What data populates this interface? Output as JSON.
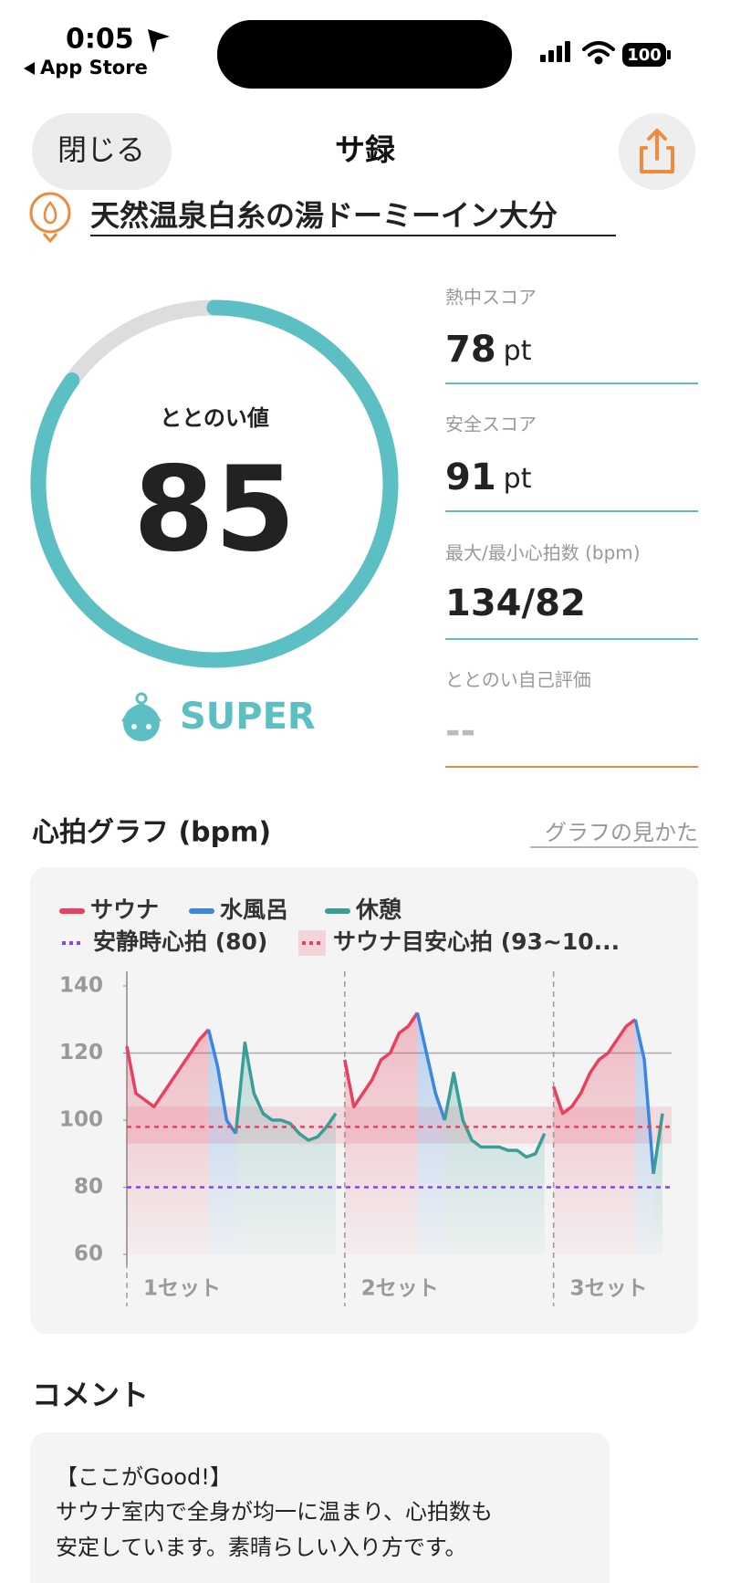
{
  "status_bar": {
    "time": "0:05",
    "back_label": "App Store",
    "battery": "100"
  },
  "nav": {
    "close": "閉じる",
    "title": "サ録"
  },
  "facility": {
    "name": "天然温泉白糸の湯ドーミーイン大分"
  },
  "score": {
    "label": "ととのい値",
    "value": 85,
    "rating": "SUPER"
  },
  "stats": [
    {
      "label": "熱中スコア",
      "value": 78,
      "unit": "pt"
    },
    {
      "label": "安全スコア",
      "value": 91,
      "unit": "pt"
    },
    {
      "label": "最大/最小心拍数 (bpm)",
      "value": "134/82"
    },
    {
      "label": "ととのい自己評価",
      "value": "--"
    }
  ],
  "graph_section": {
    "title": "心拍グラフ (bpm)",
    "help_link": "グラフの見かた"
  },
  "chart_data": {
    "type": "line",
    "x": [
      0,
      1,
      2,
      3,
      4,
      5,
      6,
      7,
      8,
      9,
      10,
      11,
      12,
      13,
      14,
      15,
      16,
      17,
      18,
      19,
      20,
      21,
      22,
      23,
      24,
      25,
      26,
      27,
      28,
      29,
      30,
      31,
      32,
      33,
      34,
      35,
      36,
      37,
      38,
      39,
      40,
      41,
      42,
      43,
      44,
      45,
      46,
      47,
      48,
      49,
      50,
      51,
      52,
      53,
      54,
      55,
      56,
      57,
      58,
      59
    ],
    "xlim": [
      0,
      60
    ],
    "ylim": [
      60,
      140
    ],
    "yticks": [
      60,
      80,
      100,
      120,
      140
    ],
    "series": [
      {
        "name": "サウナ",
        "color": "#e8405e",
        "values": [
          122,
          108,
          106,
          104,
          108,
          112,
          116,
          120,
          124,
          127,
          null,
          null,
          null,
          null,
          null,
          null,
          null,
          null,
          null,
          null,
          null,
          null,
          null,
          null,
          118,
          104,
          108,
          112,
          118,
          120,
          126,
          128,
          132,
          null,
          null,
          null,
          null,
          null,
          null,
          null,
          null,
          null,
          null,
          null,
          null,
          null,
          null,
          110,
          102,
          104,
          108,
          114,
          118,
          120,
          124,
          128,
          130,
          null,
          null,
          null
        ]
      },
      {
        "name": "水風呂",
        "color": "#3a86e0",
        "values": [
          null,
          null,
          null,
          null,
          null,
          null,
          null,
          null,
          null,
          127,
          116,
          100,
          96,
          null,
          null,
          null,
          null,
          null,
          null,
          null,
          null,
          null,
          null,
          null,
          null,
          null,
          null,
          null,
          null,
          null,
          null,
          null,
          132,
          120,
          108,
          100,
          null,
          null,
          null,
          null,
          null,
          null,
          null,
          null,
          null,
          null,
          null,
          null,
          null,
          null,
          null,
          null,
          null,
          null,
          null,
          null,
          130,
          118,
          84,
          null
        ]
      },
      {
        "name": "休憩",
        "color": "#3a9e98",
        "values": [
          null,
          null,
          null,
          null,
          null,
          null,
          null,
          null,
          null,
          null,
          null,
          null,
          96,
          123,
          108,
          102,
          100,
          100,
          99,
          96,
          94,
          95,
          98,
          102,
          null,
          null,
          null,
          null,
          null,
          null,
          null,
          null,
          null,
          null,
          null,
          100,
          114,
          100,
          94,
          92,
          92,
          92,
          91,
          91,
          89,
          90,
          96,
          null,
          null,
          null,
          null,
          null,
          null,
          null,
          null,
          null,
          null,
          null,
          84,
          102
        ]
      }
    ],
    "reference_lines": [
      {
        "name": "安静時心拍 (80)",
        "value": 80,
        "color": "#8a3ff0"
      },
      {
        "name": "サウナ目安心拍 (93~10...",
        "value": 98,
        "band": [
          93,
          104
        ],
        "color": "#e8405e"
      }
    ],
    "hlines": [
      {
        "value": 120,
        "color": "#aaaaaa"
      }
    ],
    "sets": [
      {
        "label": "1セット",
        "x": 0
      },
      {
        "label": "2セット",
        "x": 24
      },
      {
        "label": "3セット",
        "x": 47
      }
    ]
  },
  "comment": {
    "title": "コメント",
    "lines": [
      "【ここがGood!】",
      "サウナ室内で全身が均一に温まり、心拍数も",
      "安定しています。素晴らしい入り方です。"
    ]
  }
}
